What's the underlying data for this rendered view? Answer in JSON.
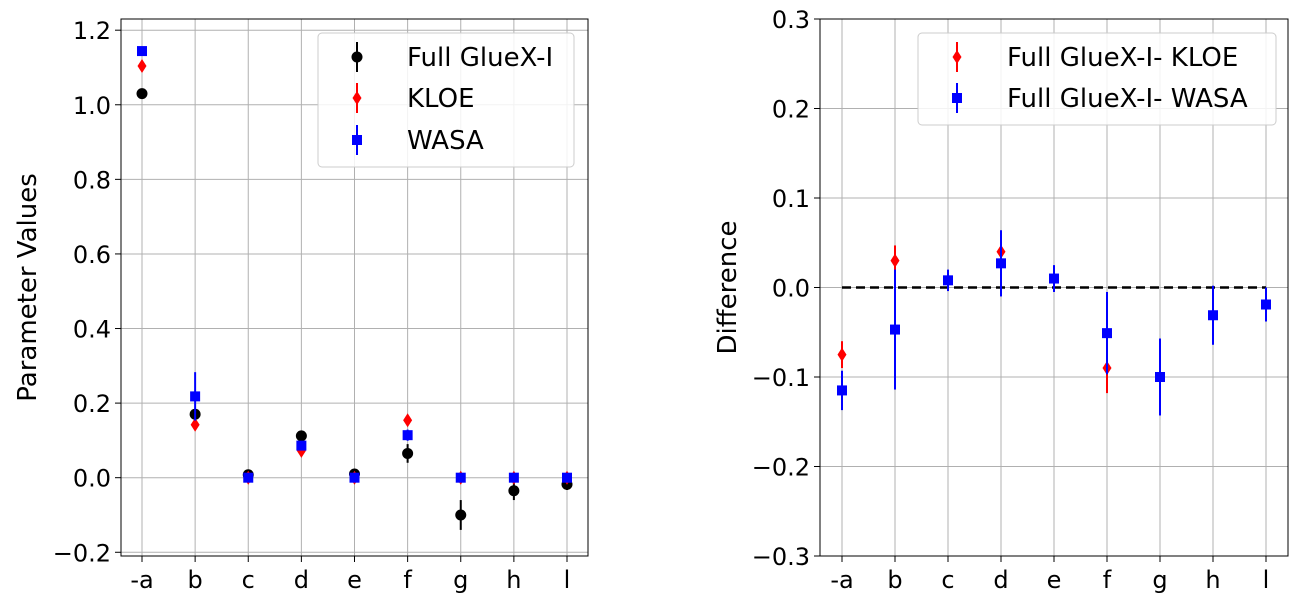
{
  "chart_data": [
    {
      "type": "scatter",
      "title": "",
      "xlabel": "",
      "ylabel": "Parameter Values",
      "categories": [
        "-a",
        "b",
        "c",
        "d",
        "e",
        "f",
        "g",
        "h",
        "l"
      ],
      "ylim": [
        -0.21,
        1.23
      ],
      "yticks": [
        -0.2,
        0.0,
        0.2,
        0.4,
        0.6,
        0.8,
        1.0,
        1.2
      ],
      "ytick_labels": [
        "−0.2",
        "0.0",
        "0.2",
        "0.4",
        "0.6",
        "0.8",
        "1.0",
        "1.2"
      ],
      "grid": true,
      "legend_position": "top-right",
      "series": [
        {
          "name": "Full GlueX-I",
          "color": "#000000",
          "marker": "circle",
          "offset": 0,
          "values": [
            1.03,
            0.17,
            0.008,
            0.112,
            0.01,
            0.065,
            -0.1,
            -0.035,
            -0.018
          ],
          "errors": [
            0.005,
            0.005,
            0.005,
            0.01,
            0.005,
            0.025,
            0.04,
            0.025,
            0.015
          ]
        },
        {
          "name": "KLOE",
          "color": "#ff0000",
          "marker": "diamond",
          "offset": 0,
          "values": [
            1.104,
            0.142,
            0.0,
            0.072,
            0.0,
            0.154,
            0.0,
            0.0,
            0.0
          ],
          "errors": [
            0.005,
            0.005,
            0.002,
            0.005,
            0.002,
            0.005,
            0.002,
            0.002,
            0.002
          ]
        },
        {
          "name": "WASA",
          "color": "#0000ff",
          "marker": "square",
          "offset": 0,
          "values": [
            1.144,
            0.218,
            0.0,
            0.086,
            0.0,
            0.114,
            0.0,
            0.0,
            0.0
          ],
          "errors": [
            0.005,
            0.065,
            0.003,
            0.005,
            0.002,
            0.015,
            0.002,
            0.002,
            0.002
          ]
        }
      ]
    },
    {
      "type": "scatter",
      "title": "",
      "xlabel": "",
      "ylabel": "Difference",
      "categories": [
        "-a",
        "b",
        "c",
        "d",
        "e",
        "f",
        "g",
        "h",
        "l"
      ],
      "ylim": [
        -0.3,
        0.3
      ],
      "yticks": [
        -0.3,
        -0.2,
        -0.1,
        0.0,
        0.1,
        0.2,
        0.3
      ],
      "ytick_labels": [
        "−0.3",
        "−0.2",
        "−0.1",
        "0.0",
        "0.1",
        "0.2",
        "0.3"
      ],
      "grid": true,
      "legend_position": "top-right",
      "reference_line": 0.0,
      "series": [
        {
          "name": "Full GlueX-I- KLOE",
          "color": "#ff0000",
          "marker": "diamond",
          "offset": 0,
          "values": [
            -0.075,
            0.03,
            null,
            0.04,
            null,
            -0.09,
            null,
            null,
            null
          ],
          "errors": [
            0.015,
            0.017,
            null,
            0.012,
            null,
            0.028,
            null,
            null,
            null
          ]
        },
        {
          "name": "Full GlueX-I- WASA",
          "color": "#0000ff",
          "marker": "square",
          "offset": 0,
          "values": [
            -0.115,
            -0.047,
            0.008,
            0.027,
            0.01,
            -0.051,
            -0.1,
            -0.031,
            -0.019
          ],
          "errors": [
            0.022,
            0.067,
            0.012,
            0.037,
            0.015,
            0.046,
            0.043,
            0.033,
            0.019
          ]
        }
      ]
    }
  ]
}
